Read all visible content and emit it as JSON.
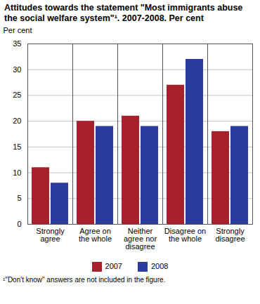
{
  "chart_data": {
    "type": "bar",
    "title": "Attitudes towards the statement \"Most immigrants abuse the social welfare system\"¹. 2007-2008. Per cent",
    "y_label": "Per cent",
    "caption": "¹\"Don't know\" answers are not included in the figure.",
    "categories": [
      "Strongly agree",
      "Agree on the whole",
      "Neither agree nor disagree",
      "Disagree on the whole",
      "Strongly disagree"
    ],
    "series": [
      {
        "name": "2007",
        "color": "#a8202c",
        "values": [
          11,
          20,
          21,
          27,
          18
        ]
      },
      {
        "name": "2008",
        "color": "#2b3c9e",
        "values": [
          8,
          19,
          19,
          32,
          19
        ]
      }
    ],
    "ylim": [
      0,
      35
    ],
    "yticks": [
      0,
      5,
      10,
      15,
      20,
      25,
      30,
      35
    ],
    "grid": true,
    "legend": "bottom"
  }
}
